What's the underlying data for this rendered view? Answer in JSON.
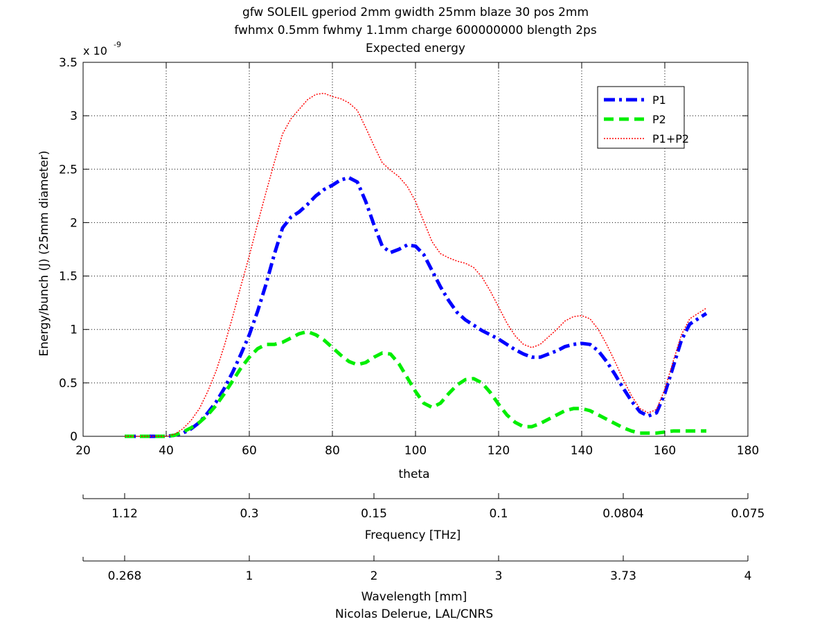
{
  "chart_data": {
    "type": "line",
    "title_lines": [
      "gfw SOLEIL gperiod 2mm gwidth 25mm blaze 30 pos 2mm",
      "fwhmx 0.5mm fwhmy 1.1mm charge 600000000 blength 2ps",
      "Expected energy"
    ],
    "xlabel": "theta",
    "ylabel": "Energy/bunch (J) (25mm diameter)",
    "y_exponent_base": "x 10",
    "y_exponent_power": "-9",
    "xlim": [
      20,
      180
    ],
    "ylim": [
      0,
      3.5
    ],
    "xticks": [
      20,
      40,
      60,
      80,
      100,
      120,
      140,
      160,
      180
    ],
    "xtick_labels": [
      "20",
      "40",
      "60",
      "80",
      "100",
      "120",
      "140",
      "160",
      "180"
    ],
    "yticks": [
      0,
      0.5,
      1,
      1.5,
      2,
      2.5,
      3,
      3.5
    ],
    "ytick_labels": [
      "0",
      "0.5",
      "1",
      "1.5",
      "2",
      "2.5",
      "3",
      "3.5"
    ],
    "grid": true,
    "grid_style": "dotted",
    "legend_position": "top-right",
    "series": [
      {
        "name": "P1",
        "color": "#0000ff",
        "style": "dash-dot",
        "x": [
          30,
          35,
          40,
          42,
          44,
          46,
          48,
          50,
          52,
          54,
          56,
          58,
          60,
          62,
          64,
          66,
          68,
          70,
          72,
          74,
          76,
          78,
          80,
          82,
          84,
          86,
          88,
          90,
          92,
          94,
          96,
          98,
          100,
          102,
          104,
          106,
          108,
          110,
          112,
          114,
          116,
          118,
          120,
          122,
          124,
          126,
          128,
          130,
          132,
          134,
          136,
          138,
          140,
          142,
          144,
          146,
          148,
          150,
          152,
          154,
          156,
          158,
          160,
          162,
          164,
          166,
          168,
          170
        ],
        "values": [
          0,
          0,
          0,
          0.01,
          0.03,
          0.07,
          0.13,
          0.22,
          0.32,
          0.45,
          0.6,
          0.77,
          0.95,
          1.17,
          1.42,
          1.7,
          1.95,
          2.05,
          2.1,
          2.17,
          2.25,
          2.31,
          2.35,
          2.4,
          2.42,
          2.38,
          2.2,
          1.98,
          1.78,
          1.72,
          1.75,
          1.79,
          1.78,
          1.7,
          1.55,
          1.4,
          1.27,
          1.16,
          1.09,
          1.04,
          0.99,
          0.95,
          0.91,
          0.86,
          0.81,
          0.77,
          0.74,
          0.74,
          0.77,
          0.8,
          0.84,
          0.86,
          0.87,
          0.86,
          0.8,
          0.7,
          0.58,
          0.45,
          0.33,
          0.23,
          0.19,
          0.22,
          0.4,
          0.65,
          0.9,
          1.05,
          1.1,
          1.15
        ]
      },
      {
        "name": "P2",
        "color": "#00ee00",
        "style": "dashed",
        "x": [
          30,
          35,
          40,
          42,
          44,
          46,
          48,
          50,
          52,
          54,
          56,
          58,
          60,
          62,
          64,
          66,
          68,
          70,
          72,
          74,
          76,
          78,
          80,
          82,
          84,
          86,
          88,
          90,
          92,
          94,
          96,
          98,
          100,
          102,
          104,
          106,
          108,
          110,
          112,
          114,
          116,
          118,
          120,
          122,
          124,
          126,
          128,
          130,
          132,
          134,
          136,
          138,
          140,
          142,
          144,
          146,
          148,
          150,
          152,
          154,
          156,
          158,
          160,
          162,
          164,
          166,
          168,
          170
        ],
        "values": [
          0,
          0,
          0,
          0.01,
          0.04,
          0.08,
          0.13,
          0.2,
          0.29,
          0.4,
          0.52,
          0.64,
          0.74,
          0.82,
          0.86,
          0.86,
          0.88,
          0.92,
          0.96,
          0.98,
          0.95,
          0.9,
          0.83,
          0.76,
          0.7,
          0.67,
          0.69,
          0.74,
          0.78,
          0.77,
          0.68,
          0.55,
          0.42,
          0.31,
          0.27,
          0.31,
          0.4,
          0.48,
          0.53,
          0.54,
          0.5,
          0.41,
          0.3,
          0.2,
          0.13,
          0.09,
          0.09,
          0.12,
          0.16,
          0.2,
          0.24,
          0.26,
          0.26,
          0.24,
          0.2,
          0.16,
          0.12,
          0.08,
          0.05,
          0.03,
          0.03,
          0.03,
          0.04,
          0.05,
          0.05,
          0.05,
          0.05,
          0.05
        ]
      },
      {
        "name": "P1+P2",
        "color": "#ff0000",
        "style": "dotted",
        "x": [
          30,
          35,
          40,
          42,
          44,
          46,
          48,
          50,
          52,
          54,
          56,
          58,
          60,
          62,
          64,
          66,
          68,
          70,
          72,
          74,
          76,
          78,
          80,
          82,
          84,
          86,
          88,
          90,
          92,
          94,
          96,
          98,
          100,
          102,
          104,
          106,
          108,
          110,
          112,
          114,
          116,
          118,
          120,
          122,
          124,
          126,
          128,
          130,
          132,
          134,
          136,
          138,
          140,
          142,
          144,
          146,
          148,
          150,
          152,
          154,
          156,
          158,
          160,
          162,
          164,
          166,
          168,
          170
        ],
        "values": [
          0,
          0,
          0,
          0.02,
          0.07,
          0.15,
          0.26,
          0.42,
          0.61,
          0.85,
          1.12,
          1.41,
          1.69,
          1.99,
          2.28,
          2.56,
          2.83,
          2.97,
          3.06,
          3.15,
          3.2,
          3.21,
          3.18,
          3.16,
          3.12,
          3.05,
          2.89,
          2.72,
          2.56,
          2.49,
          2.43,
          2.34,
          2.2,
          2.01,
          1.82,
          1.71,
          1.67,
          1.64,
          1.62,
          1.58,
          1.49,
          1.36,
          1.21,
          1.06,
          0.94,
          0.86,
          0.83,
          0.86,
          0.93,
          1.0,
          1.08,
          1.12,
          1.13,
          1.1,
          1.0,
          0.86,
          0.7,
          0.53,
          0.38,
          0.26,
          0.22,
          0.25,
          0.44,
          0.7,
          0.95,
          1.1,
          1.15,
          1.2
        ]
      }
    ],
    "secondary_axes": [
      {
        "xlabel": "Frequency [THz]",
        "tick_labels": [
          "1.12",
          "0.3",
          "0.15",
          "0.1",
          "0.0804",
          "0.075"
        ],
        "tick_theta": [
          30,
          60,
          90,
          120,
          150,
          180
        ]
      },
      {
        "xlabel": "Wavelength [mm]",
        "tick_labels": [
          "0.268",
          "1",
          "2",
          "3",
          "3.73",
          "4"
        ],
        "tick_theta": [
          30,
          60,
          90,
          120,
          150,
          180
        ]
      }
    ],
    "footer": "Nicolas Delerue, LAL/CNRS"
  }
}
